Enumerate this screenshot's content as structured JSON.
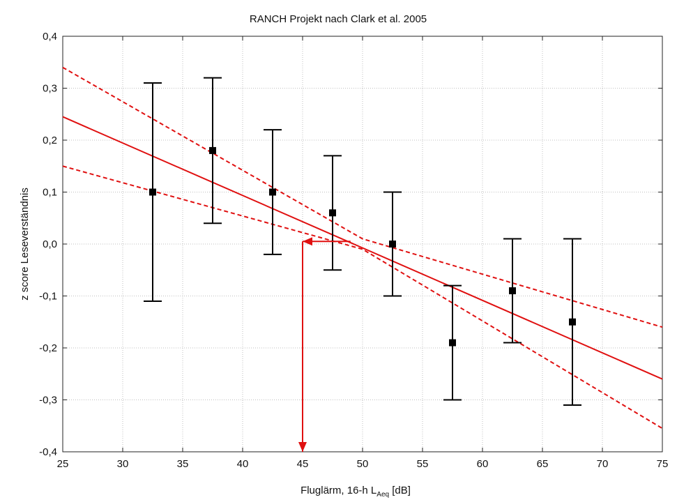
{
  "chart_data": {
    "type": "scatter",
    "title": "RANCH Projekt nach Clark et al. 2005",
    "xlabel": {
      "main": "Fluglärm, 16-h L",
      "subscript": "Aeq",
      "unit": " [dB]"
    },
    "ylabel": "z score Leseverständnis",
    "xlim": [
      25,
      75
    ],
    "ylim": [
      -0.4,
      0.4
    ],
    "x_ticks": [
      25,
      30,
      35,
      40,
      45,
      50,
      55,
      60,
      65,
      70,
      75
    ],
    "x_tick_labels": [
      "25",
      "30",
      "35",
      "40",
      "45",
      "50",
      "55",
      "60",
      "65",
      "70",
      "75"
    ],
    "y_ticks": [
      0.4,
      0.3,
      0.2,
      0.1,
      0.0,
      -0.1,
      -0.2,
      -0.3,
      -0.4
    ],
    "y_tick_labels": [
      "0,4",
      "0,3",
      "0,2",
      "0,1",
      "0,0",
      "-0,1",
      "-0,2",
      "-0,3",
      "-0,4"
    ],
    "grid": true,
    "points": [
      {
        "x": 32.5,
        "y": 0.1,
        "lower": -0.11,
        "upper": 0.31
      },
      {
        "x": 37.5,
        "y": 0.18,
        "lower": 0.04,
        "upper": 0.32
      },
      {
        "x": 42.5,
        "y": 0.1,
        "lower": -0.02,
        "upper": 0.22
      },
      {
        "x": 47.5,
        "y": 0.06,
        "lower": -0.05,
        "upper": 0.17
      },
      {
        "x": 52.5,
        "y": 0.0,
        "lower": -0.1,
        "upper": 0.1
      },
      {
        "x": 57.5,
        "y": -0.19,
        "lower": -0.3,
        "upper": -0.08
      },
      {
        "x": 62.5,
        "y": -0.09,
        "lower": -0.19,
        "upper": 0.01
      },
      {
        "x": 67.5,
        "y": -0.15,
        "lower": -0.31,
        "upper": 0.01
      }
    ],
    "regression_line": [
      [
        25,
        0.245
      ],
      [
        75,
        -0.26
      ]
    ],
    "confidence_upper": [
      [
        25,
        0.34
      ],
      [
        50,
        0.01
      ],
      [
        75,
        -0.16
      ]
    ],
    "confidence_lower": [
      [
        25,
        0.15
      ],
      [
        50,
        -0.01
      ],
      [
        75,
        -0.355
      ]
    ],
    "annotation_arrows": [
      {
        "from": [
          49,
          0.005
        ],
        "to": [
          45,
          0.005
        ]
      },
      {
        "from": [
          45,
          0.005
        ],
        "to": [
          45,
          -0.4
        ]
      }
    ],
    "colors": {
      "points": "#000000",
      "regression": "#e01010",
      "confidence": "#e01010",
      "arrows": "#e01010",
      "grid": "#bfbfbf"
    }
  }
}
